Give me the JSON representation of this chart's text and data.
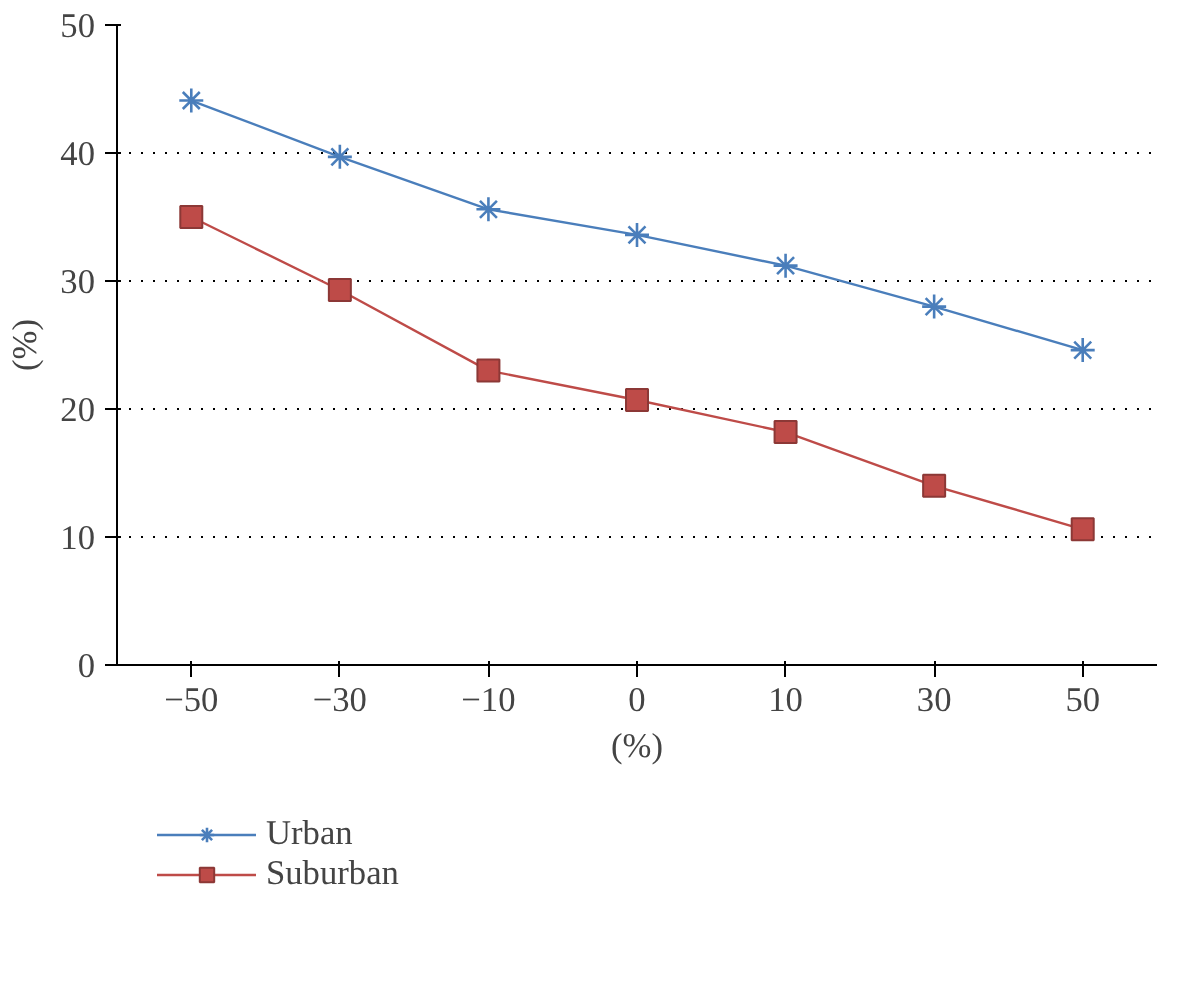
{
  "chart_data": {
    "type": "line",
    "xlabel": "(%)",
    "ylabel": "(%)",
    "categories": [
      "−50",
      "−30",
      "−10",
      "0",
      "10",
      "30",
      "50"
    ],
    "series": [
      {
        "name": "Urban",
        "color": "#4a7ebb",
        "marker": "cross",
        "values": [
          44.1,
          39.7,
          35.6,
          33.6,
          31.2,
          28.0,
          24.6
        ]
      },
      {
        "name": "Suburban",
        "color": "#be4b48",
        "marker": "square",
        "values": [
          35.0,
          29.3,
          23.0,
          20.7,
          18.2,
          14.0,
          10.6
        ]
      }
    ],
    "ylim": [
      0,
      50
    ],
    "yticks": [
      0,
      10,
      20,
      30,
      40,
      50
    ],
    "grid": "y",
    "legend": "bottom left",
    "line_style": "solid"
  }
}
